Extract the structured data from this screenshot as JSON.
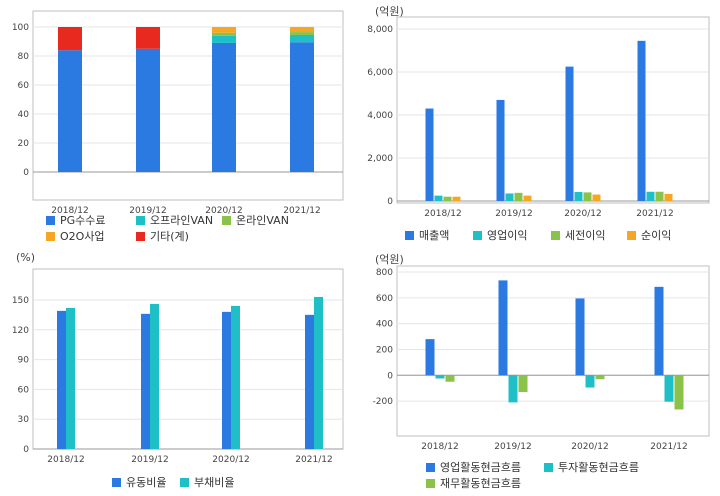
{
  "chart_data": [
    {
      "type": "bar",
      "stacked": true,
      "categories": [
        "2018/12",
        "2019/12",
        "2020/12",
        "2021/12"
      ],
      "ylim": [
        0,
        100
      ],
      "yticks": [
        0,
        20,
        40,
        60,
        80,
        100
      ],
      "series": [
        {
          "name": "PG수수료",
          "color": "#2a7ae2",
          "values": [
            84,
            85,
            89,
            89.5
          ]
        },
        {
          "name": "오프라인VAN",
          "color": "#1fbfc7",
          "values": [
            0,
            0,
            5,
            5
          ]
        },
        {
          "name": "온라인VAN",
          "color": "#8bc34a",
          "values": [
            0,
            0,
            2,
            2
          ]
        },
        {
          "name": "O2O사업",
          "color": "#f5a623",
          "values": [
            0,
            0,
            4,
            3.5
          ]
        },
        {
          "name": "기타(계)",
          "color": "#e8291f",
          "values": [
            16,
            15,
            0,
            0
          ]
        }
      ],
      "legend_position": "bottom"
    },
    {
      "type": "bar",
      "unit": "(억원)",
      "categories": [
        "2018/12",
        "2019/12",
        "2020/12",
        "2021/12"
      ],
      "ylim": [
        0,
        8000
      ],
      "yticks": [
        0,
        2000,
        4000,
        6000,
        8000
      ],
      "series": [
        {
          "name": "매출액",
          "color": "#2a7ae2",
          "values": [
            4300,
            4700,
            6250,
            7450
          ]
        },
        {
          "name": "영업이익",
          "color": "#1fbfc7",
          "values": [
            250,
            350,
            420,
            430
          ]
        },
        {
          "name": "세전이익",
          "color": "#8bc34a",
          "values": [
            200,
            380,
            400,
            430
          ]
        },
        {
          "name": "순이익",
          "color": "#f5a623",
          "values": [
            200,
            250,
            300,
            330
          ]
        }
      ],
      "legend_position": "bottom"
    },
    {
      "type": "bar",
      "unit": "(%)",
      "categories": [
        "2018/12",
        "2019/12",
        "2020/12",
        "2021/12"
      ],
      "ylim": [
        0,
        160
      ],
      "yticks": [
        0,
        30,
        60,
        90,
        120,
        150
      ],
      "series": [
        {
          "name": "유동비율",
          "color": "#2a7ae2",
          "values": [
            139,
            136,
            138,
            135
          ]
        },
        {
          "name": "부채비율",
          "color": "#1fbfc7",
          "values": [
            142,
            146,
            144,
            153
          ]
        }
      ],
      "legend_position": "bottom"
    },
    {
      "type": "bar",
      "unit": "(억원)",
      "categories": [
        "2018/12",
        "2019/12",
        "2020/12",
        "2021/12"
      ],
      "ylim": [
        -300,
        800
      ],
      "yticks": [
        -200,
        0,
        200,
        400,
        600,
        800
      ],
      "series": [
        {
          "name": "영업활동현금흐름",
          "color": "#2a7ae2",
          "values": [
            280,
            735,
            595,
            685
          ]
        },
        {
          "name": "투자활동현금흐름",
          "color": "#1fbfc7",
          "values": [
            -25,
            -210,
            -95,
            -205
          ]
        },
        {
          "name": "재무활동현금흐름",
          "color": "#8bc34a",
          "values": [
            -50,
            -130,
            -30,
            -265
          ]
        }
      ],
      "legend_position": "bottom"
    }
  ]
}
